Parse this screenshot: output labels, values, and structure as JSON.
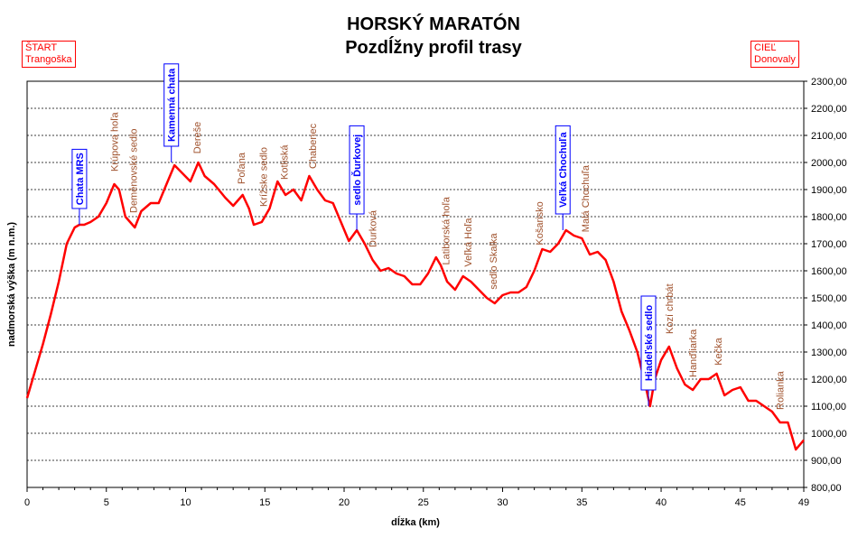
{
  "title": "HORSKÝ MARATÓN",
  "subtitle": "Pozdĺžny profil trasy",
  "start": {
    "line1": "ŠTART",
    "line2": "Trangoška"
  },
  "finish": {
    "line1": "CIEĽ",
    "line2": "Donovaly"
  },
  "colors": {
    "profile": "#ff0000",
    "grid": "#000000",
    "peak_label": "#a0522d",
    "hut_label": "#0000ff"
  },
  "chart_data": {
    "type": "line",
    "title": "HORSKÝ MARATÓN",
    "subtitle": "Pozdĺžny profil trasy",
    "xlabel": "dĺžka (km)",
    "ylabel": "nadmorská výška (m n.m.)",
    "xlim": [
      0,
      49
    ],
    "ylim": [
      800,
      2300
    ],
    "x_ticks": [
      0,
      5,
      10,
      15,
      20,
      25,
      30,
      35,
      40,
      45,
      49
    ],
    "y_ticks": [
      "800,00",
      "900,00",
      "1000,00",
      "1100,00",
      "1200,00",
      "1300,00",
      "1400,00",
      "1500,00",
      "1600,00",
      "1700,00",
      "1800,00",
      "1900,00",
      "2000,00",
      "2100,00",
      "2200,00",
      "2300,00"
    ],
    "grid": "horizontal dashed",
    "series": [
      {
        "x": [
          0,
          0.5,
          1,
          1.5,
          2,
          2.5,
          3,
          3.3,
          3.6,
          4,
          4.5,
          5,
          5.5,
          5.8,
          6.2,
          6.8,
          7.2,
          7.8,
          8.3,
          8.8,
          9.3,
          9.8,
          10.3,
          10.8,
          11.2,
          11.8,
          12.5,
          13,
          13.6,
          14,
          14.3,
          14.8,
          15.3,
          15.8,
          16.3,
          16.8,
          17.3,
          17.8,
          18.3,
          18.8,
          19.3,
          19.8,
          20.3,
          20.8,
          21.3,
          21.8,
          22.3,
          22.8,
          23.3,
          23.8,
          24.3,
          24.8,
          25.3,
          25.8,
          26.1,
          26.5,
          27,
          27.5,
          28,
          28.5,
          29,
          29.5,
          30,
          30.5,
          31,
          31.5,
          32,
          32.5,
          33,
          33.5,
          34,
          34.5,
          35,
          35.5,
          36,
          36.5,
          37,
          37.5,
          38,
          38.5,
          39,
          39.3,
          39.6,
          40,
          40.5,
          41,
          41.5,
          42,
          42.5,
          43,
          43.5,
          44,
          44.5,
          45,
          45.5,
          46,
          46.5,
          47,
          47.5,
          48,
          48.5,
          49
        ],
        "y": [
          1130,
          1230,
          1330,
          1440,
          1560,
          1700,
          1760,
          1770,
          1770,
          1780,
          1800,
          1850,
          1920,
          1900,
          1800,
          1760,
          1820,
          1850,
          1850,
          1920,
          1990,
          1960,
          1930,
          2000,
          1950,
          1920,
          1870,
          1840,
          1880,
          1830,
          1770,
          1780,
          1830,
          1930,
          1880,
          1900,
          1860,
          1950,
          1900,
          1860,
          1850,
          1780,
          1710,
          1750,
          1700,
          1640,
          1600,
          1610,
          1590,
          1580,
          1550,
          1550,
          1590,
          1650,
          1620,
          1560,
          1530,
          1580,
          1560,
          1530,
          1500,
          1480,
          1510,
          1520,
          1520,
          1540,
          1600,
          1680,
          1670,
          1700,
          1750,
          1730,
          1720,
          1660,
          1670,
          1640,
          1560,
          1450,
          1380,
          1300,
          1180,
          1100,
          1200,
          1270,
          1320,
          1240,
          1180,
          1160,
          1200,
          1200,
          1220,
          1140,
          1160,
          1170,
          1120,
          1120,
          1100,
          1080,
          1040,
          1040,
          940,
          975
        ]
      }
    ],
    "annotations_peaks": [
      {
        "x": 5.5,
        "label": "Krúpova hoľa"
      },
      {
        "x": 6.7,
        "label": "Deměnovské sedlo"
      },
      {
        "x": 10.7,
        "label": "Dereše"
      },
      {
        "x": 13.5,
        "label": "Poľana"
      },
      {
        "x": 14.9,
        "label": "Krížske sedlo"
      },
      {
        "x": 16.2,
        "label": "Kotliská"
      },
      {
        "x": 18.0,
        "label": "Chabenec"
      },
      {
        "x": 21.8,
        "label": "Ďurková"
      },
      {
        "x": 26.4,
        "label": "Latiborská hoľa"
      },
      {
        "x": 27.8,
        "label": "Veľká Hoľa"
      },
      {
        "x": 29.4,
        "label": "sedlo Skalka"
      },
      {
        "x": 32.3,
        "label": "Košarisko"
      },
      {
        "x": 35.2,
        "label": "Malá Chochuľa"
      },
      {
        "x": 40.5,
        "label": "Kozí chrbát"
      },
      {
        "x": 42.0,
        "label": "Hanďliarka"
      },
      {
        "x": 43.6,
        "label": "Kečka"
      },
      {
        "x": 47.5,
        "label": "Rolianka"
      }
    ],
    "annotations_huts": [
      {
        "x": 3.3,
        "label": "Chata MRS",
        "y": 1770
      },
      {
        "x": 9.1,
        "label": "Kamenná chata",
        "y": 2000
      },
      {
        "x": 20.8,
        "label": "sedlo Ďurkovej",
        "y": 1750
      },
      {
        "x": 33.8,
        "label": "Veľká Chochuľa",
        "y": 1750
      },
      {
        "x": 39.2,
        "label": "Hiadeľské sedlo",
        "y": 1100
      }
    ]
  }
}
